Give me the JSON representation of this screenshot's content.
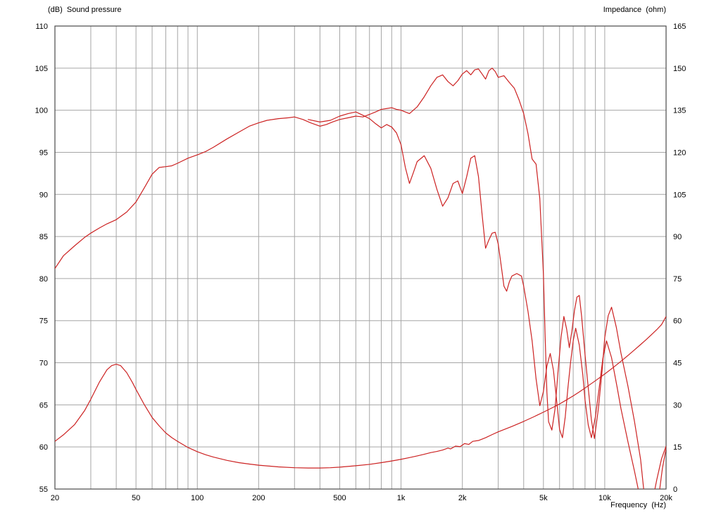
{
  "title_left": "(dB)  Sound pressure",
  "title_right": "Impedance  (ohm)",
  "xlabel": "Frequency  (Hz)",
  "chart_data": {
    "type": "line",
    "x_scale": "log",
    "x_range": [
      20,
      20000
    ],
    "x_ticks": [
      {
        "value": 20,
        "label": "20"
      },
      {
        "value": 50,
        "label": "50"
      },
      {
        "value": 100,
        "label": "100"
      },
      {
        "value": 200,
        "label": "200"
      },
      {
        "value": 500,
        "label": "500"
      },
      {
        "value": 1000,
        "label": "1k"
      },
      {
        "value": 2000,
        "label": "2k"
      },
      {
        "value": 5000,
        "label": "5k"
      },
      {
        "value": 10000,
        "label": "10k"
      },
      {
        "value": 20000,
        "label": "20k"
      }
    ],
    "y_left": {
      "label": "(dB) Sound pressure",
      "min": 55,
      "max": 110,
      "step": 5
    },
    "y_right": {
      "label": "Impedance (ohm)",
      "min": 0,
      "max": 165,
      "step": 15
    },
    "grid": true,
    "colors": {
      "curve": "#cc2222",
      "grid": "#a6a6a6",
      "border": "#4a4a4a",
      "background": "#ffffff",
      "text": "#000000"
    },
    "series": [
      {
        "name": "spl-on-axis",
        "axis": "left",
        "points": [
          [
            20,
            81.2
          ],
          [
            22,
            82.7
          ],
          [
            25,
            83.9
          ],
          [
            28,
            84.9
          ],
          [
            30,
            85.4
          ],
          [
            33,
            86.0
          ],
          [
            36,
            86.5
          ],
          [
            40,
            87.0
          ],
          [
            45,
            87.9
          ],
          [
            50,
            89.1
          ],
          [
            55,
            90.8
          ],
          [
            60,
            92.4
          ],
          [
            65,
            93.2
          ],
          [
            70,
            93.3
          ],
          [
            75,
            93.4
          ],
          [
            80,
            93.7
          ],
          [
            90,
            94.3
          ],
          [
            100,
            94.7
          ],
          [
            110,
            95.1
          ],
          [
            120,
            95.6
          ],
          [
            140,
            96.6
          ],
          [
            160,
            97.4
          ],
          [
            180,
            98.1
          ],
          [
            200,
            98.5
          ],
          [
            220,
            98.8
          ],
          [
            250,
            99.0
          ],
          [
            280,
            99.1
          ],
          [
            300,
            99.2
          ],
          [
            330,
            98.9
          ],
          [
            360,
            98.5
          ],
          [
            400,
            98.1
          ],
          [
            430,
            98.3
          ],
          [
            460,
            98.6
          ],
          [
            500,
            98.9
          ],
          [
            550,
            99.1
          ],
          [
            600,
            99.3
          ],
          [
            650,
            99.2
          ],
          [
            700,
            99.5
          ],
          [
            750,
            99.8
          ],
          [
            800,
            100.1
          ],
          [
            850,
            100.2
          ],
          [
            900,
            100.3
          ],
          [
            950,
            100.1
          ],
          [
            1000,
            100.0
          ],
          [
            1100,
            99.6
          ],
          [
            1200,
            100.4
          ],
          [
            1300,
            101.6
          ],
          [
            1400,
            102.9
          ],
          [
            1500,
            103.9
          ],
          [
            1600,
            104.2
          ],
          [
            1700,
            103.4
          ],
          [
            1800,
            102.9
          ],
          [
            1900,
            103.5
          ],
          [
            2000,
            104.3
          ],
          [
            2100,
            104.7
          ],
          [
            2200,
            104.2
          ],
          [
            2300,
            104.8
          ],
          [
            2400,
            104.9
          ],
          [
            2500,
            104.3
          ],
          [
            2600,
            103.7
          ],
          [
            2700,
            104.7
          ],
          [
            2800,
            105.0
          ],
          [
            2900,
            104.6
          ],
          [
            3000,
            103.9
          ],
          [
            3200,
            104.1
          ],
          [
            3400,
            103.3
          ],
          [
            3600,
            102.6
          ],
          [
            3800,
            101.2
          ],
          [
            4000,
            99.6
          ],
          [
            4200,
            97.2
          ],
          [
            4400,
            94.2
          ],
          [
            4600,
            93.6
          ],
          [
            4800,
            89.5
          ],
          [
            5000,
            80.5
          ],
          [
            5100,
            73.0
          ],
          [
            5200,
            66.5
          ],
          [
            5300,
            63.0
          ],
          [
            5500,
            62.0
          ],
          [
            5700,
            64.5
          ],
          [
            5900,
            69.0
          ],
          [
            6100,
            73.0
          ],
          [
            6300,
            75.5
          ],
          [
            6500,
            74.0
          ],
          [
            6700,
            71.8
          ],
          [
            6900,
            73.8
          ],
          [
            7100,
            76.2
          ],
          [
            7300,
            77.8
          ],
          [
            7500,
            78.0
          ],
          [
            7700,
            75.5
          ],
          [
            8000,
            71.0
          ],
          [
            8300,
            67.0
          ],
          [
            8600,
            63.2
          ],
          [
            8900,
            61.0
          ],
          [
            9300,
            64.5
          ],
          [
            9700,
            69.0
          ],
          [
            10000,
            73.0
          ],
          [
            10400,
            75.6
          ],
          [
            10800,
            76.6
          ],
          [
            11400,
            74.2
          ],
          [
            12000,
            71.2
          ],
          [
            13000,
            67.2
          ],
          [
            14000,
            63.0
          ],
          [
            15000,
            58.5
          ],
          [
            15600,
            54.5
          ],
          [
            16200,
            50.5
          ],
          [
            17000,
            48.5
          ],
          [
            17800,
            51.5
          ],
          [
            18500,
            54.5
          ],
          [
            19200,
            57.5
          ],
          [
            20000,
            59.8
          ]
        ]
      },
      {
        "name": "spl-off-axis",
        "axis": "left",
        "points": [
          [
            350,
            98.9
          ],
          [
            400,
            98.6
          ],
          [
            450,
            98.8
          ],
          [
            500,
            99.3
          ],
          [
            550,
            99.6
          ],
          [
            600,
            99.8
          ],
          [
            650,
            99.4
          ],
          [
            700,
            99.0
          ],
          [
            750,
            98.4
          ],
          [
            800,
            97.9
          ],
          [
            850,
            98.3
          ],
          [
            900,
            98.0
          ],
          [
            950,
            97.3
          ],
          [
            1000,
            95.9
          ],
          [
            1050,
            93.2
          ],
          [
            1100,
            91.3
          ],
          [
            1150,
            92.6
          ],
          [
            1200,
            93.9
          ],
          [
            1300,
            94.6
          ],
          [
            1400,
            93.1
          ],
          [
            1500,
            90.6
          ],
          [
            1600,
            88.6
          ],
          [
            1700,
            89.6
          ],
          [
            1800,
            91.3
          ],
          [
            1900,
            91.6
          ],
          [
            2000,
            90.1
          ],
          [
            2100,
            92.1
          ],
          [
            2200,
            94.3
          ],
          [
            2300,
            94.6
          ],
          [
            2400,
            92.1
          ],
          [
            2500,
            87.6
          ],
          [
            2600,
            83.6
          ],
          [
            2700,
            84.6
          ],
          [
            2800,
            85.4
          ],
          [
            2900,
            85.5
          ],
          [
            3000,
            84.1
          ],
          [
            3100,
            81.6
          ],
          [
            3200,
            79.1
          ],
          [
            3300,
            78.5
          ],
          [
            3400,
            79.6
          ],
          [
            3500,
            80.3
          ],
          [
            3700,
            80.6
          ],
          [
            3900,
            80.3
          ],
          [
            4000,
            79.1
          ],
          [
            4200,
            76.1
          ],
          [
            4400,
            72.6
          ],
          [
            4600,
            68.1
          ],
          [
            4800,
            64.9
          ],
          [
            5000,
            66.6
          ],
          [
            5200,
            69.6
          ],
          [
            5400,
            71.1
          ],
          [
            5600,
            69.1
          ],
          [
            5800,
            65.6
          ],
          [
            6000,
            62.1
          ],
          [
            6200,
            61.1
          ],
          [
            6400,
            63.6
          ],
          [
            6600,
            67.1
          ],
          [
            6800,
            70.1
          ],
          [
            7000,
            72.6
          ],
          [
            7200,
            74.1
          ],
          [
            7500,
            72.1
          ],
          [
            7800,
            68.6
          ],
          [
            8000,
            65.6
          ],
          [
            8300,
            62.6
          ],
          [
            8600,
            61.1
          ],
          [
            9000,
            63.6
          ],
          [
            9400,
            67.1
          ],
          [
            9800,
            70.6
          ],
          [
            10200,
            72.6
          ],
          [
            10800,
            70.6
          ],
          [
            11500,
            67.1
          ],
          [
            12000,
            64.6
          ],
          [
            13000,
            60.6
          ],
          [
            14000,
            57.1
          ],
          [
            15000,
            53.6
          ],
          [
            16000,
            51.1
          ],
          [
            17000,
            53.1
          ],
          [
            18000,
            56.1
          ],
          [
            19000,
            58.6
          ],
          [
            20000,
            60.1
          ]
        ]
      },
      {
        "name": "impedance",
        "axis": "right",
        "points": [
          [
            20,
            17.0
          ],
          [
            22,
            19.3
          ],
          [
            25,
            23.0
          ],
          [
            28,
            28.0
          ],
          [
            30,
            32.0
          ],
          [
            33,
            38.0
          ],
          [
            36,
            42.5
          ],
          [
            38,
            44.0
          ],
          [
            40,
            44.5
          ],
          [
            42,
            44.0
          ],
          [
            45,
            41.5
          ],
          [
            48,
            38.0
          ],
          [
            50,
            35.5
          ],
          [
            55,
            30.0
          ],
          [
            60,
            25.5
          ],
          [
            65,
            22.5
          ],
          [
            70,
            20.0
          ],
          [
            75,
            18.3
          ],
          [
            80,
            17.0
          ],
          [
            90,
            14.8
          ],
          [
            100,
            13.3
          ],
          [
            110,
            12.2
          ],
          [
            120,
            11.4
          ],
          [
            140,
            10.2
          ],
          [
            160,
            9.4
          ],
          [
            180,
            8.9
          ],
          [
            200,
            8.5
          ],
          [
            250,
            7.9
          ],
          [
            300,
            7.6
          ],
          [
            350,
            7.5
          ],
          [
            400,
            7.5
          ],
          [
            450,
            7.6
          ],
          [
            500,
            7.8
          ],
          [
            600,
            8.3
          ],
          [
            700,
            8.8
          ],
          [
            800,
            9.4
          ],
          [
            900,
            10.0
          ],
          [
            1000,
            10.6
          ],
          [
            1100,
            11.2
          ],
          [
            1200,
            11.8
          ],
          [
            1300,
            12.4
          ],
          [
            1400,
            13.0
          ],
          [
            1500,
            13.4
          ],
          [
            1600,
            13.9
          ],
          [
            1700,
            14.6
          ],
          [
            1750,
            14.3
          ],
          [
            1850,
            15.3
          ],
          [
            1950,
            15.1
          ],
          [
            2050,
            16.2
          ],
          [
            2150,
            15.9
          ],
          [
            2250,
            17.0
          ],
          [
            2400,
            17.3
          ],
          [
            2600,
            18.3
          ],
          [
            2800,
            19.4
          ],
          [
            3000,
            20.4
          ],
          [
            3500,
            22.3
          ],
          [
            4000,
            24.1
          ],
          [
            4500,
            25.8
          ],
          [
            5000,
            27.4
          ],
          [
            5500,
            28.9
          ],
          [
            6000,
            30.3
          ],
          [
            6500,
            31.8
          ],
          [
            7000,
            33.2
          ],
          [
            7500,
            34.6
          ],
          [
            8000,
            36.0
          ],
          [
            9000,
            38.6
          ],
          [
            10000,
            41.0
          ],
          [
            11000,
            43.3
          ],
          [
            12000,
            45.5
          ],
          [
            13000,
            47.6
          ],
          [
            14000,
            49.6
          ],
          [
            15000,
            51.5
          ],
          [
            16000,
            53.3
          ],
          [
            17000,
            55.1
          ],
          [
            18000,
            56.8
          ],
          [
            19000,
            58.6
          ],
          [
            20000,
            61.5
          ]
        ]
      }
    ]
  }
}
